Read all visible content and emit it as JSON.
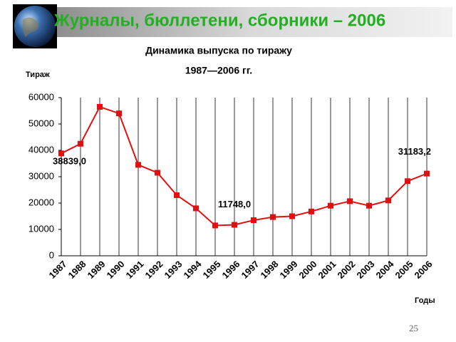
{
  "header": {
    "title": "Журналы, бюллетени, сборники – 2006"
  },
  "page_number": "25",
  "chart_data": {
    "type": "line",
    "title": "Динамика выпуска по тиражу",
    "subtitle": "1987—2006 гг.",
    "y_label": "Тираж",
    "x_label": "Годы",
    "categories": [
      "1987",
      "1988",
      "1989",
      "1990",
      "1991",
      "1992",
      "1993",
      "1994",
      "1995",
      "1996",
      "1997",
      "1998",
      "1999",
      "2000",
      "2001",
      "2002",
      "2003",
      "2004",
      "2005",
      "2006"
    ],
    "series": [
      {
        "name": "Тираж",
        "color": "#e01010",
        "values": [
          38839,
          42500,
          56500,
          54000,
          34500,
          31500,
          23000,
          18000,
          11500,
          11748,
          13500,
          14700,
          15000,
          16800,
          19000,
          20700,
          19000,
          21000,
          28300,
          31183.2
        ],
        "value_labels": [
          "38839,0",
          null,
          null,
          null,
          null,
          null,
          null,
          null,
          null,
          "11748,0",
          null,
          null,
          null,
          null,
          null,
          null,
          null,
          null,
          null,
          "31183,2"
        ]
      }
    ],
    "ylim": [
      0,
      60000
    ],
    "yticks": [
      0,
      10000,
      20000,
      30000,
      40000,
      50000,
      60000
    ],
    "grid": true
  }
}
